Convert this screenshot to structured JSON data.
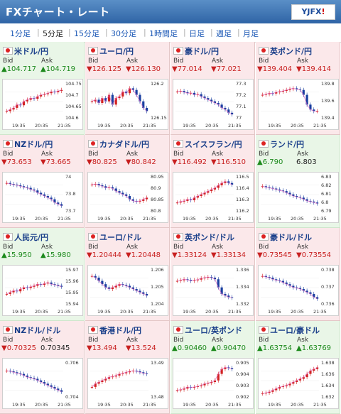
{
  "header": {
    "title": "FXチャート・レート",
    "logo": "YJFX!"
  },
  "tabs": [
    "1分足",
    "5分足",
    "15分足",
    "30分足",
    "1時間足",
    "日足",
    "週足",
    "月足"
  ],
  "active_tab": 1,
  "labels": {
    "bid": "Bid",
    "ask": "Ask"
  },
  "cells": [
    {
      "pair": "米ドル/円",
      "trend": "up",
      "bid": "▲104.717",
      "ask": "▲104.719",
      "bid_dir": "up",
      "ask_dir": "up",
      "yticks": [
        "104.75",
        "104.7",
        "104.65",
        "104.6"
      ],
      "xticks": [
        "19:35",
        "20:35",
        "21:35"
      ],
      "series": [
        0.2,
        0.25,
        0.3,
        0.4,
        0.38,
        0.5,
        0.55,
        0.6,
        0.58,
        0.65,
        0.7,
        0.72,
        0.75,
        0.8,
        0.78,
        0.82,
        0.85
      ]
    },
    {
      "pair": "ユーロ/円",
      "trend": "down",
      "bid": "▼126.125",
      "ask": "▼126.130",
      "bid_dir": "down",
      "ask_dir": "down",
      "yticks": [
        "126.2",
        "126.15"
      ],
      "xticks": [
        "19:35",
        "20:35",
        "21:35"
      ],
      "series": [
        0.5,
        0.55,
        0.45,
        0.6,
        0.5,
        0.7,
        0.4,
        0.6,
        0.65,
        0.8,
        0.75,
        0.9,
        0.85,
        0.7,
        0.5,
        0.3,
        0.2
      ]
    },
    {
      "pair": "豪ドル/円",
      "trend": "down",
      "bid": "▼77.014",
      "ask": "▼77.021",
      "bid_dir": "down",
      "ask_dir": "down",
      "yticks": [
        "77.3",
        "77.2",
        "77.1",
        "77"
      ],
      "xticks": [
        "19:35",
        "20:35",
        "21:35"
      ],
      "series": [
        0.8,
        0.82,
        0.78,
        0.75,
        0.76,
        0.7,
        0.72,
        0.65,
        0.6,
        0.55,
        0.5,
        0.45,
        0.4,
        0.3,
        0.25,
        0.15,
        0.1
      ]
    },
    {
      "pair": "英ポンド/円",
      "trend": "down",
      "bid": "▼139.404",
      "ask": "▼139.414",
      "bid_dir": "down",
      "ask_dir": "down",
      "yticks": [
        "139.8",
        "139.6",
        "139.4"
      ],
      "xticks": [
        "19:35",
        "20:35",
        "21:35"
      ],
      "series": [
        0.7,
        0.72,
        0.75,
        0.74,
        0.78,
        0.8,
        0.82,
        0.85,
        0.88,
        0.9,
        0.87,
        0.85,
        0.7,
        0.4,
        0.25,
        0.2,
        0.2
      ]
    },
    {
      "pair": "NZドル/円",
      "trend": "down",
      "bid": "▼73.653",
      "ask": "▼73.665",
      "bid_dir": "down",
      "ask_dir": "down",
      "yticks": [
        "74",
        "73.8",
        "73.7"
      ],
      "xticks": [
        "19:35",
        "20:35",
        "21:35"
      ],
      "series": [
        0.85,
        0.82,
        0.8,
        0.78,
        0.75,
        0.72,
        0.7,
        0.65,
        0.62,
        0.55,
        0.5,
        0.45,
        0.4,
        0.35,
        0.25,
        0.2,
        0.15
      ]
    },
    {
      "pair": "カナダドル/円",
      "trend": "down",
      "bid": "▼80.825",
      "ask": "▼80.842",
      "bid_dir": "down",
      "ask_dir": "down",
      "yticks": [
        "80.95",
        "80.9",
        "80.85",
        "80.8"
      ],
      "xticks": [
        "19:35",
        "20:35",
        "21:35"
      ],
      "series": [
        0.8,
        0.82,
        0.78,
        0.75,
        0.7,
        0.72,
        0.68,
        0.6,
        0.55,
        0.5,
        0.45,
        0.35,
        0.3,
        0.28,
        0.3,
        0.35,
        0.4
      ]
    },
    {
      "pair": "スイスフラン/円",
      "trend": "down",
      "bid": "▼116.492",
      "ask": "▼116.510",
      "bid_dir": "down",
      "ask_dir": "down",
      "yticks": [
        "116.5",
        "116.4",
        "116.3",
        "116.2"
      ],
      "xticks": [
        "19:35",
        "20:35",
        "21:35"
      ],
      "series": [
        0.25,
        0.28,
        0.3,
        0.35,
        0.32,
        0.4,
        0.45,
        0.5,
        0.55,
        0.6,
        0.65,
        0.7,
        0.78,
        0.85,
        0.9,
        0.85,
        0.8
      ]
    },
    {
      "pair": "ランド/円",
      "trend": "up",
      "bid": "▲6.790",
      "ask": "6.803",
      "bid_dir": "up",
      "ask_dir": "plain",
      "yticks": [
        "6.83",
        "6.82",
        "6.81",
        "6.8",
        "6.79"
      ],
      "xticks": [
        "19:35",
        "20:35",
        "21:35"
      ],
      "series": [
        0.75,
        0.72,
        0.7,
        0.68,
        0.65,
        0.62,
        0.6,
        0.55,
        0.5,
        0.45,
        0.42,
        0.4,
        0.35,
        0.3,
        0.28,
        0.25,
        0.22
      ]
    },
    {
      "pair": "人民元/円",
      "trend": "up",
      "bid": "▲15.950",
      "ask": "▲15.980",
      "bid_dir": "up",
      "ask_dir": "up",
      "yticks": [
        "15.97",
        "15.96",
        "15.95",
        "15.94"
      ],
      "xticks": [
        "19:35",
        "20:35",
        "21:35"
      ],
      "series": [
        0.3,
        0.35,
        0.4,
        0.38,
        0.45,
        0.5,
        0.48,
        0.52,
        0.55,
        0.6,
        0.58,
        0.62,
        0.65,
        0.6,
        0.58,
        0.55,
        0.52
      ]
    },
    {
      "pair": "ユーロ/ドル",
      "trend": "down",
      "bid": "▼1.20444",
      "ask": "▼1.20448",
      "bid_dir": "down",
      "ask_dir": "down",
      "yticks": [
        "1.206",
        "1.205",
        "1.204"
      ],
      "xticks": [
        "19:35",
        "20:35",
        "21:35"
      ],
      "series": [
        0.85,
        0.8,
        0.7,
        0.6,
        0.5,
        0.45,
        0.5,
        0.55,
        0.6,
        0.58,
        0.55,
        0.5,
        0.45,
        0.4,
        0.35,
        0.3,
        0.25
      ]
    },
    {
      "pair": "英ポンド/ドル",
      "trend": "down",
      "bid": "▼1.33124",
      "ask": "▼1.33134",
      "bid_dir": "down",
      "ask_dir": "down",
      "yticks": [
        "1.336",
        "1.334",
        "1.332"
      ],
      "xticks": [
        "19:35",
        "20:35",
        "21:35"
      ],
      "series": [
        0.7,
        0.72,
        0.75,
        0.73,
        0.7,
        0.72,
        0.74,
        0.78,
        0.8,
        0.82,
        0.8,
        0.75,
        0.5,
        0.3,
        0.25,
        0.2,
        0.18
      ]
    },
    {
      "pair": "豪ドル/ドル",
      "trend": "down",
      "bid": "▼0.73545",
      "ask": "▼0.73554",
      "bid_dir": "down",
      "ask_dir": "down",
      "yticks": [
        "0.738",
        "0.737",
        "0.736"
      ],
      "xticks": [
        "19:35",
        "20:35",
        "21:35"
      ],
      "series": [
        0.85,
        0.82,
        0.8,
        0.75,
        0.72,
        0.7,
        0.65,
        0.6,
        0.55,
        0.5,
        0.48,
        0.45,
        0.4,
        0.35,
        0.3,
        0.2,
        0.15
      ]
    },
    {
      "pair": "NZドル/ドル",
      "trend": "down",
      "bid": "▼0.70325",
      "ask": "0.70345",
      "bid_dir": "down",
      "ask_dir": "plain",
      "yticks": [
        "0.706",
        "0.704"
      ],
      "xticks": [
        "19:35",
        "20:35",
        "21:35"
      ],
      "series": [
        0.8,
        0.78,
        0.75,
        0.72,
        0.7,
        0.65,
        0.6,
        0.58,
        0.55,
        0.5,
        0.45,
        0.4,
        0.35,
        0.3,
        0.25,
        0.2,
        0.15
      ]
    },
    {
      "pair": "香港ドル/円",
      "trend": "down",
      "bid": "▼13.494",
      "ask": "▼13.524",
      "bid_dir": "down",
      "ask_dir": "down",
      "yticks": [
        "13.49",
        "13.48"
      ],
      "xticks": [
        "19:35",
        "20:35",
        "21:35"
      ],
      "series": [
        0.3,
        0.4,
        0.45,
        0.5,
        0.55,
        0.6,
        0.62,
        0.65,
        0.7,
        0.72,
        0.75,
        0.78,
        0.8,
        0.78,
        0.75,
        0.72,
        0.7
      ]
    },
    {
      "pair": "ユーロ/英ポンド",
      "trend": "up",
      "bid": "▲0.90460",
      "ask": "▲0.90470",
      "bid_dir": "up",
      "ask_dir": "up",
      "yticks": [
        "0.905",
        "0.904",
        "0.903",
        "0.902"
      ],
      "xticks": [
        "19:35",
        "20:35",
        "21:35"
      ],
      "series": [
        0.2,
        0.22,
        0.25,
        0.3,
        0.28,
        0.3,
        0.32,
        0.35,
        0.4,
        0.42,
        0.45,
        0.5,
        0.7,
        0.85,
        0.9,
        0.88,
        0.85
      ]
    },
    {
      "pair": "ユーロ/豪ドル",
      "trend": "up",
      "bid": "▲1.63754",
      "ask": "▲1.63769",
      "bid_dir": "up",
      "ask_dir": "up",
      "yticks": [
        "1.638",
        "1.636",
        "1.634",
        "1.632"
      ],
      "xticks": [
        "19:35",
        "20:35",
        "21:35"
      ],
      "series": [
        0.1,
        0.12,
        0.15,
        0.2,
        0.25,
        0.3,
        0.32,
        0.35,
        0.4,
        0.45,
        0.5,
        0.55,
        0.6,
        0.7,
        0.8,
        0.85,
        0.9
      ]
    }
  ],
  "colors": {
    "up_bg": "#e9f6e7",
    "down_bg": "#fbe8ea",
    "up_text": "#1d8a1d",
    "down_text": "#c82020",
    "candle_up": "#d22222",
    "candle_down": "#1a3fa0",
    "ma_line": "#e060c0"
  }
}
